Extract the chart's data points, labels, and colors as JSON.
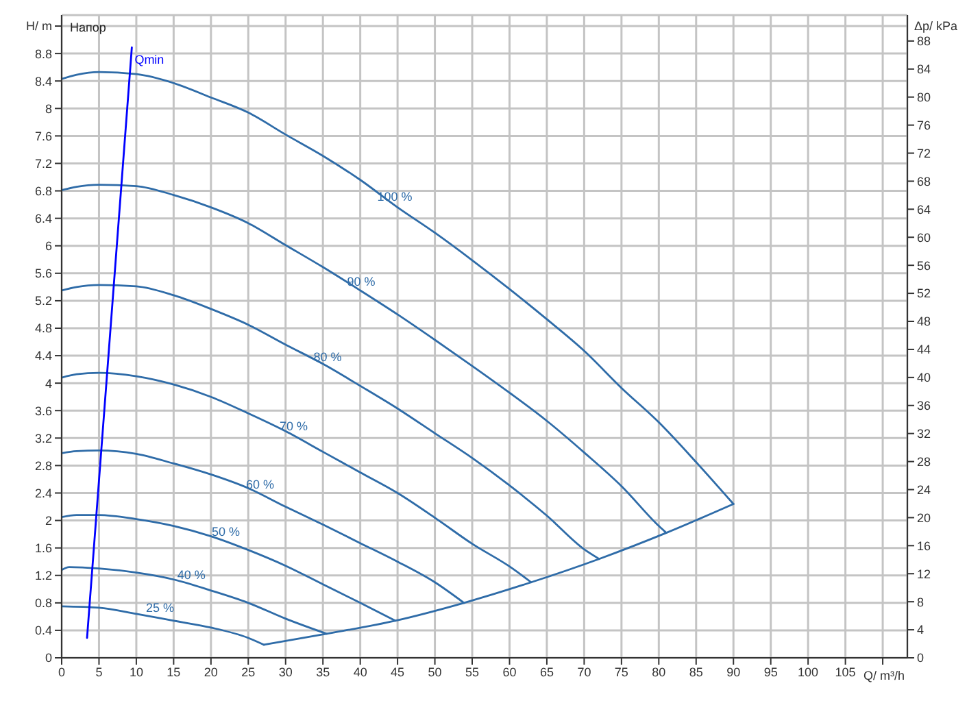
{
  "chart_data": {
    "type": "line",
    "title": "Напор",
    "xlabel": "Q/ m³/h",
    "ylabel": "H/ m",
    "y2label": "Δp/ kPa",
    "xlim": [
      0,
      113.3
    ],
    "xticks": [
      0,
      5,
      10,
      15,
      20,
      25,
      30,
      35,
      40,
      45,
      50,
      55,
      60,
      65,
      70,
      75,
      80,
      85,
      90,
      95,
      100,
      105,
      {
        "value": 110,
        "label": null
      }
    ],
    "ylim": [
      0,
      9.36
    ],
    "yticks": [
      0,
      0.4,
      0.8,
      1.2,
      1.6,
      2,
      2.4,
      2.8,
      3.2,
      3.6,
      4,
      4.4,
      4.8,
      5.2,
      5.6,
      6,
      6.4,
      6.8,
      7.2,
      7.6,
      8,
      8.4,
      8.8,
      {
        "value": 9.2,
        "label": null
      }
    ],
    "y2lim": [
      0,
      91.7
    ],
    "y2ticks": [
      0,
      4,
      8,
      12,
      16,
      20,
      24,
      28,
      32,
      36,
      40,
      44,
      48,
      52,
      56,
      60,
      64,
      68,
      72,
      76,
      80,
      84,
      88
    ],
    "grid": true,
    "line_style": "solid",
    "series": [
      {
        "name": "100 %",
        "color": "#2f6ca8",
        "x": [
          0,
          2,
          5,
          10,
          15,
          20,
          25,
          30,
          35,
          40,
          45,
          50,
          55,
          60,
          65,
          70,
          75,
          80,
          85,
          90
        ],
        "values": [
          8.43,
          8.49,
          8.53,
          8.5,
          8.37,
          8.16,
          7.94,
          7.62,
          7.31,
          6.96,
          6.56,
          6.19,
          5.79,
          5.37,
          4.93,
          4.47,
          3.93,
          3.43,
          2.85,
          2.24
        ]
      },
      {
        "name": "90 %",
        "color": "#2f6ca8",
        "x": [
          0,
          2,
          5,
          10,
          15,
          20,
          25,
          30,
          35,
          40,
          45,
          50,
          55,
          60,
          65,
          70,
          75,
          80,
          81
        ],
        "values": [
          6.81,
          6.86,
          6.89,
          6.87,
          6.74,
          6.56,
          6.33,
          6.01,
          5.69,
          5.35,
          5.0,
          4.63,
          4.25,
          3.86,
          3.45,
          2.99,
          2.5,
          1.92,
          1.82
        ]
      },
      {
        "name": "80 %",
        "color": "#2f6ca8",
        "x": [
          0,
          2,
          5,
          10,
          15,
          20,
          25,
          30,
          35,
          40,
          45,
          50,
          55,
          60,
          65,
          70,
          72
        ],
        "values": [
          5.35,
          5.4,
          5.43,
          5.41,
          5.28,
          5.08,
          4.85,
          4.56,
          4.28,
          3.96,
          3.63,
          3.27,
          2.91,
          2.51,
          2.07,
          1.58,
          1.44
        ]
      },
      {
        "name": "70 %",
        "color": "#2f6ca8",
        "x": [
          0,
          2,
          5,
          10,
          15,
          20,
          25,
          30,
          35,
          40,
          45,
          50,
          55,
          60,
          62.9
        ],
        "values": [
          4.08,
          4.13,
          4.15,
          4.1,
          3.98,
          3.8,
          3.56,
          3.3,
          3.0,
          2.7,
          2.4,
          2.04,
          1.66,
          1.33,
          1.1
        ]
      },
      {
        "name": "60 %",
        "color": "#2f6ca8",
        "x": [
          0,
          2,
          5,
          10,
          15,
          20,
          25,
          30,
          35,
          40,
          45,
          50,
          53.9
        ],
        "values": [
          2.98,
          3.01,
          3.02,
          2.97,
          2.83,
          2.67,
          2.47,
          2.2,
          1.94,
          1.67,
          1.4,
          1.1,
          0.8
        ]
      },
      {
        "name": "50 %",
        "color": "#2f6ca8",
        "x": [
          0,
          2,
          5,
          10,
          15,
          20,
          25,
          30,
          35,
          40,
          44.7
        ],
        "values": [
          2.05,
          2.08,
          2.08,
          2.02,
          1.92,
          1.77,
          1.57,
          1.34,
          1.07,
          0.8,
          0.54
        ]
      },
      {
        "name": "40 %",
        "color": "#2f6ca8",
        "x": [
          0,
          1,
          5,
          10,
          15,
          20,
          25,
          30,
          35.5
        ],
        "values": [
          1.28,
          1.32,
          1.3,
          1.24,
          1.14,
          0.98,
          0.8,
          0.57,
          0.35
        ]
      },
      {
        "name": "25 %",
        "color": "#2f6ca8",
        "x": [
          0,
          5,
          10,
          15,
          20,
          25,
          27.1
        ],
        "values": [
          0.75,
          0.73,
          0.64,
          0.54,
          0.44,
          0.29,
          0.19
        ]
      },
      {
        "color": "#2f6ca8",
        "x": [
          27.1,
          35.5,
          44.7,
          53.9,
          62.9,
          72,
          81,
          90
        ],
        "values": [
          0.19,
          0.35,
          0.54,
          0.8,
          1.1,
          1.44,
          1.82,
          2.24
        ]
      },
      {
        "name": "Qmin",
        "color": "#0000ff",
        "x": [
          3.4,
          9.4
        ],
        "values": [
          0.29,
          8.89
        ]
      }
    ]
  }
}
